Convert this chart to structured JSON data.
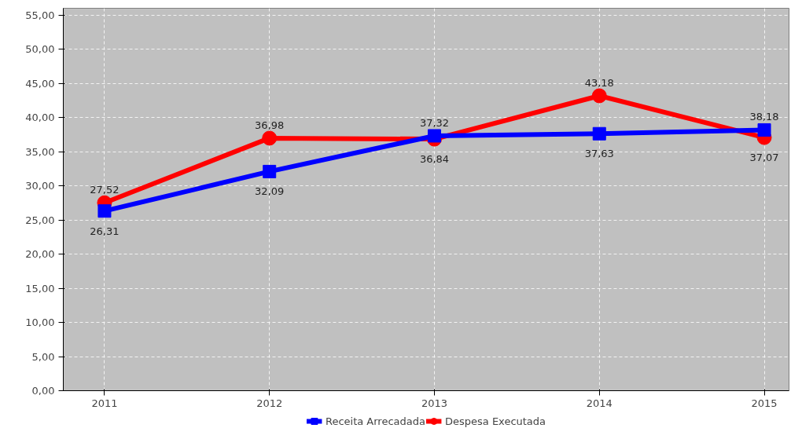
{
  "chart_data": {
    "type": "line",
    "categories": [
      "2011",
      "2012",
      "2013",
      "2014",
      "2015"
    ],
    "series": [
      {
        "name": "Receita Arrecadada",
        "color": "#0000ff",
        "marker": "square",
        "values": [
          26.31,
          32.09,
          37.32,
          37.63,
          38.18
        ],
        "value_labels": [
          "26,31",
          "32,09",
          "37,32",
          "37,63",
          "38,18"
        ]
      },
      {
        "name": "Despesa Executada",
        "color": "#ff0000",
        "marker": "circle",
        "values": [
          27.52,
          36.98,
          36.84,
          43.18,
          37.07
        ],
        "value_labels": [
          "27,52",
          "36,98",
          "36,84",
          "43,18",
          "37,07"
        ]
      }
    ],
    "ylim": [
      0,
      56
    ],
    "yticks": [
      {
        "value": 0,
        "label": "0,00"
      },
      {
        "value": 5,
        "label": "5,00"
      },
      {
        "value": 10,
        "label": "10,00"
      },
      {
        "value": 15,
        "label": "15,00"
      },
      {
        "value": 20,
        "label": "20,00"
      },
      {
        "value": 25,
        "label": "25,00"
      },
      {
        "value": 30,
        "label": "30,00"
      },
      {
        "value": 35,
        "label": "35,00"
      },
      {
        "value": 40,
        "label": "40,00"
      },
      {
        "value": 45,
        "label": "45,00"
      },
      {
        "value": 50,
        "label": "50,00"
      },
      {
        "value": 55,
        "label": "55,00"
      }
    ],
    "grid": true,
    "legend": "bottom",
    "line_style": "solid"
  }
}
